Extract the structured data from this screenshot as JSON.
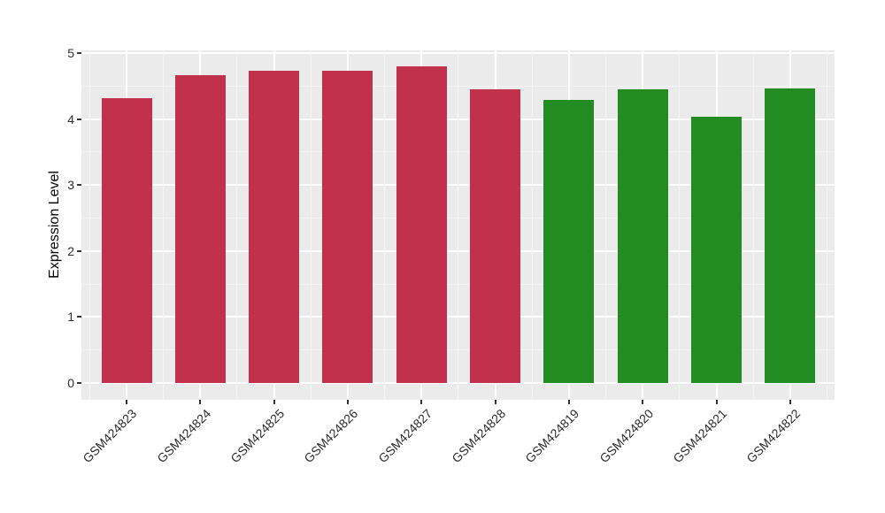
{
  "chart_data": {
    "type": "bar",
    "title": "",
    "xlabel": "",
    "ylabel": "Expression Level",
    "categories": [
      "GSM424823",
      "GSM424824",
      "GSM424825",
      "GSM424826",
      "GSM424827",
      "GSM424828",
      "GSM424819",
      "GSM424820",
      "GSM424821",
      "GSM424822"
    ],
    "values": [
      4.32,
      4.67,
      4.73,
      4.73,
      4.8,
      4.45,
      4.29,
      4.45,
      4.03,
      4.47
    ],
    "bar_colors": [
      "#C2314B",
      "#C2314B",
      "#C2314B",
      "#C2314B",
      "#C2314B",
      "#C2314B",
      "#228B22",
      "#228B22",
      "#228B22",
      "#228B22"
    ],
    "ylim": [
      0,
      5
    ],
    "yticks": [
      0,
      1,
      2,
      3,
      4,
      5
    ],
    "yticks_minor": [
      0.5,
      1.5,
      2.5,
      3.5,
      4.5
    ],
    "grid": true,
    "legend_position": "none",
    "colors": {
      "panel_background": "#EBEBEB",
      "grid_major": "#FFFFFF",
      "grid_minor": "#F5F5F5",
      "tick_mark": "#333333",
      "tick_text": "#2B2B2B",
      "page_background": "#FFFFFF"
    }
  }
}
